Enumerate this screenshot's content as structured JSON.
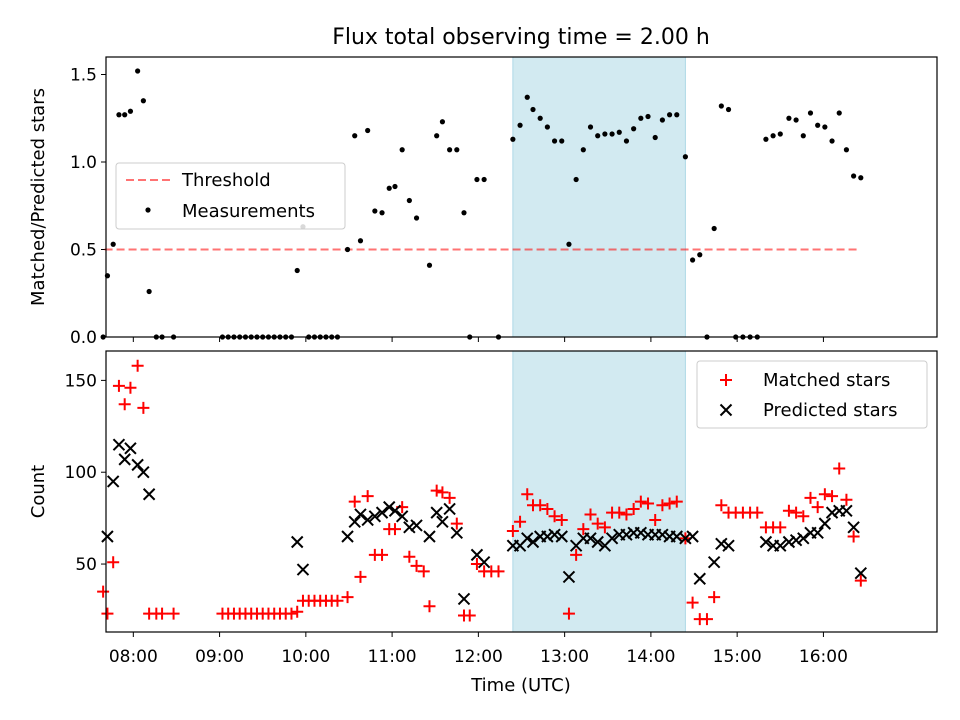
{
  "chart_data": {
    "type": "scatter",
    "title": "Flux total observing time = 2.00 h",
    "xlabel": "Time (UTC)",
    "x_ticks": [
      "08:00",
      "09:00",
      "10:00",
      "11:00",
      "12:00",
      "13:00",
      "14:00",
      "15:00",
      "16:00"
    ],
    "xlim": [
      "07:41",
      "17:19"
    ],
    "highlight_window": [
      "12:24",
      "14:24"
    ],
    "highlight_color": "#add8e6",
    "top": {
      "ylabel": "Matched/Predicted stars",
      "ylim": [
        0,
        1.6
      ],
      "yticks": [
        "0.0",
        "0.5",
        "1.0",
        "1.5"
      ],
      "legend_position": "center-left",
      "threshold": {
        "name": "Threshold",
        "y": 0.5,
        "x_start": "07:40",
        "x_end": "16:25",
        "color": "#ff0000",
        "style": "dashed"
      },
      "measurements": {
        "name": "Measurements",
        "color": "#000000",
        "points": [
          [
            "07:39",
            0
          ],
          [
            "07:42",
            0.35
          ],
          [
            "07:46",
            0.53
          ],
          [
            "07:50",
            1.27
          ],
          [
            "07:54",
            1.27
          ],
          [
            "07:58",
            1.29
          ],
          [
            "08:03",
            1.52
          ],
          [
            "08:07",
            1.35
          ],
          [
            "08:11",
            0.26
          ],
          [
            "08:16",
            0
          ],
          [
            "08:20",
            0
          ],
          [
            "08:28",
            0
          ],
          [
            "09:02",
            0
          ],
          [
            "09:06",
            0
          ],
          [
            "09:10",
            0
          ],
          [
            "09:14",
            0
          ],
          [
            "09:18",
            0
          ],
          [
            "09:22",
            0
          ],
          [
            "09:26",
            0
          ],
          [
            "09:30",
            0
          ],
          [
            "09:34",
            0
          ],
          [
            "09:38",
            0
          ],
          [
            "09:42",
            0
          ],
          [
            "09:46",
            0
          ],
          [
            "09:50",
            0
          ],
          [
            "09:54",
            0.38
          ],
          [
            "09:58",
            0.63
          ],
          [
            "10:02",
            0
          ],
          [
            "10:06",
            0
          ],
          [
            "10:10",
            0
          ],
          [
            "10:14",
            0
          ],
          [
            "10:18",
            0
          ],
          [
            "10:22",
            0
          ],
          [
            "10:29",
            0.5
          ],
          [
            "10:34",
            1.15
          ],
          [
            "10:38",
            0.55
          ],
          [
            "10:43",
            1.18
          ],
          [
            "10:48",
            0.72
          ],
          [
            "10:53",
            0.71
          ],
          [
            "10:58",
            0.85
          ],
          [
            "11:02",
            0.86
          ],
          [
            "11:07",
            1.07
          ],
          [
            "11:12",
            0.78
          ],
          [
            "11:17",
            0.68
          ],
          [
            "11:26",
            0.41
          ],
          [
            "11:31",
            1.15
          ],
          [
            "11:35",
            1.23
          ],
          [
            "11:40",
            1.07
          ],
          [
            "11:45",
            1.07
          ],
          [
            "11:50",
            0.71
          ],
          [
            "11:54",
            0
          ],
          [
            "11:59",
            0.9
          ],
          [
            "12:04",
            0.9
          ],
          [
            "12:14",
            0
          ],
          [
            "12:24",
            1.13
          ],
          [
            "12:29",
            1.21
          ],
          [
            "12:34",
            1.37
          ],
          [
            "12:38",
            1.3
          ],
          [
            "12:43",
            1.25
          ],
          [
            "12:48",
            1.2
          ],
          [
            "12:53",
            1.12
          ],
          [
            "12:58",
            1.12
          ],
          [
            "13:03",
            0.53
          ],
          [
            "13:08",
            0.9
          ],
          [
            "13:13",
            1.07
          ],
          [
            "13:18",
            1.2
          ],
          [
            "13:23",
            1.15
          ],
          [
            "13:28",
            1.16
          ],
          [
            "13:33",
            1.16
          ],
          [
            "13:38",
            1.17
          ],
          [
            "13:43",
            1.12
          ],
          [
            "13:48",
            1.19
          ],
          [
            "13:53",
            1.25
          ],
          [
            "13:58",
            1.26
          ],
          [
            "14:03",
            1.14
          ],
          [
            "14:08",
            1.24
          ],
          [
            "14:13",
            1.27
          ],
          [
            "14:18",
            1.27
          ],
          [
            "14:24",
            1.03
          ],
          [
            "14:29",
            0.44
          ],
          [
            "14:34",
            0.47
          ],
          [
            "14:39",
            0
          ],
          [
            "14:44",
            0.62
          ],
          [
            "14:49",
            1.32
          ],
          [
            "14:54",
            1.3
          ],
          [
            "14:59",
            0
          ],
          [
            "15:04",
            0
          ],
          [
            "15:09",
            0
          ],
          [
            "15:14",
            0
          ],
          [
            "15:20",
            1.13
          ],
          [
            "15:25",
            1.15
          ],
          [
            "15:30",
            1.16
          ],
          [
            "15:36",
            1.25
          ],
          [
            "15:41",
            1.24
          ],
          [
            "15:46",
            1.15
          ],
          [
            "15:51",
            1.28
          ],
          [
            "15:56",
            1.21
          ],
          [
            "16:01",
            1.2
          ],
          [
            "16:06",
            1.12
          ],
          [
            "16:11",
            1.28
          ],
          [
            "16:16",
            1.07
          ],
          [
            "16:21",
            0.92
          ],
          [
            "16:26",
            0.91
          ]
        ]
      }
    },
    "bottom": {
      "ylabel": "Count",
      "ylim": [
        13,
        166
      ],
      "yticks": [
        "50",
        "100",
        "150"
      ],
      "legend_position": "top-right",
      "matched": {
        "name": "Matched stars",
        "color": "#ff0000",
        "marker": "plus",
        "points": [
          [
            "07:39",
            35
          ],
          [
            "07:42",
            23
          ],
          [
            "07:46",
            51
          ],
          [
            "07:50",
            147
          ],
          [
            "07:54",
            137
          ],
          [
            "07:58",
            146
          ],
          [
            "08:03",
            158
          ],
          [
            "08:07",
            135
          ],
          [
            "08:11",
            23
          ],
          [
            "08:16",
            23
          ],
          [
            "08:20",
            23
          ],
          [
            "08:28",
            23
          ],
          [
            "09:02",
            23
          ],
          [
            "09:06",
            23
          ],
          [
            "09:10",
            23
          ],
          [
            "09:14",
            23
          ],
          [
            "09:18",
            23
          ],
          [
            "09:22",
            23
          ],
          [
            "09:26",
            23
          ],
          [
            "09:30",
            23
          ],
          [
            "09:34",
            23
          ],
          [
            "09:38",
            23
          ],
          [
            "09:42",
            23
          ],
          [
            "09:46",
            23
          ],
          [
            "09:50",
            23
          ],
          [
            "09:54",
            24
          ],
          [
            "09:58",
            30
          ],
          [
            "10:02",
            30
          ],
          [
            "10:06",
            30
          ],
          [
            "10:10",
            30
          ],
          [
            "10:14",
            30
          ],
          [
            "10:18",
            30
          ],
          [
            "10:22",
            30
          ],
          [
            "10:29",
            32
          ],
          [
            "10:34",
            84
          ],
          [
            "10:38",
            43
          ],
          [
            "10:43",
            87
          ],
          [
            "10:48",
            55
          ],
          [
            "10:53",
            55
          ],
          [
            "10:58",
            69
          ],
          [
            "11:02",
            69
          ],
          [
            "11:07",
            81
          ],
          [
            "11:12",
            54
          ],
          [
            "11:17",
            49
          ],
          [
            "11:22",
            46
          ],
          [
            "11:26",
            27
          ],
          [
            "11:31",
            90
          ],
          [
            "11:35",
            89
          ],
          [
            "11:40",
            86
          ],
          [
            "11:45",
            72
          ],
          [
            "11:50",
            22
          ],
          [
            "11:54",
            22
          ],
          [
            "11:59",
            50
          ],
          [
            "12:04",
            46
          ],
          [
            "12:09",
            46
          ],
          [
            "12:14",
            46
          ],
          [
            "12:24",
            68
          ],
          [
            "12:29",
            73
          ],
          [
            "12:34",
            88
          ],
          [
            "12:38",
            82
          ],
          [
            "12:43",
            82
          ],
          [
            "12:48",
            80
          ],
          [
            "12:53",
            76
          ],
          [
            "12:58",
            74
          ],
          [
            "13:03",
            23
          ],
          [
            "13:08",
            55
          ],
          [
            "13:13",
            69
          ],
          [
            "13:18",
            77
          ],
          [
            "13:23",
            72
          ],
          [
            "13:28",
            70
          ],
          [
            "13:33",
            78
          ],
          [
            "13:38",
            78
          ],
          [
            "13:43",
            77
          ],
          [
            "13:48",
            80
          ],
          [
            "13:53",
            84
          ],
          [
            "13:58",
            83
          ],
          [
            "14:03",
            74
          ],
          [
            "14:08",
            82
          ],
          [
            "14:13",
            83
          ],
          [
            "14:18",
            84
          ],
          [
            "14:24",
            64
          ],
          [
            "14:29",
            29
          ],
          [
            "14:34",
            20
          ],
          [
            "14:39",
            20
          ],
          [
            "14:44",
            32
          ],
          [
            "14:49",
            82
          ],
          [
            "14:54",
            78
          ],
          [
            "14:59",
            78
          ],
          [
            "15:04",
            78
          ],
          [
            "15:09",
            78
          ],
          [
            "15:14",
            78
          ],
          [
            "15:20",
            70
          ],
          [
            "15:25",
            70
          ],
          [
            "15:30",
            70
          ],
          [
            "15:36",
            79
          ],
          [
            "15:41",
            78
          ],
          [
            "15:46",
            76
          ],
          [
            "15:51",
            86
          ],
          [
            "15:56",
            81
          ],
          [
            "16:01",
            88
          ],
          [
            "16:06",
            87
          ],
          [
            "16:11",
            102
          ],
          [
            "16:16",
            85
          ],
          [
            "16:21",
            65
          ],
          [
            "16:26",
            41
          ]
        ]
      },
      "predicted": {
        "name": "Predicted stars",
        "color": "#000000",
        "marker": "x",
        "points": [
          [
            "07:42",
            65
          ],
          [
            "07:46",
            95
          ],
          [
            "07:50",
            115
          ],
          [
            "07:54",
            107
          ],
          [
            "07:58",
            113
          ],
          [
            "08:03",
            104
          ],
          [
            "08:07",
            100
          ],
          [
            "08:11",
            88
          ],
          [
            "09:54",
            62
          ],
          [
            "09:58",
            47
          ],
          [
            "10:29",
            65
          ],
          [
            "10:34",
            73
          ],
          [
            "10:38",
            77
          ],
          [
            "10:43",
            74
          ],
          [
            "10:48",
            76
          ],
          [
            "10:53",
            78
          ],
          [
            "10:58",
            81
          ],
          [
            "11:02",
            79
          ],
          [
            "11:07",
            76
          ],
          [
            "11:12",
            70
          ],
          [
            "11:17",
            71
          ],
          [
            "11:26",
            65
          ],
          [
            "11:31",
            78
          ],
          [
            "11:35",
            73
          ],
          [
            "11:40",
            80
          ],
          [
            "11:45",
            67
          ],
          [
            "11:50",
            31
          ],
          [
            "11:59",
            55
          ],
          [
            "12:04",
            51
          ],
          [
            "12:24",
            60
          ],
          [
            "12:29",
            60
          ],
          [
            "12:34",
            64
          ],
          [
            "12:38",
            62
          ],
          [
            "12:43",
            65
          ],
          [
            "12:48",
            65
          ],
          [
            "12:53",
            66
          ],
          [
            "12:58",
            65
          ],
          [
            "13:03",
            43
          ],
          [
            "13:08",
            60
          ],
          [
            "13:13",
            64
          ],
          [
            "13:18",
            64
          ],
          [
            "13:23",
            62
          ],
          [
            "13:28",
            60
          ],
          [
            "13:33",
            64
          ],
          [
            "13:38",
            66
          ],
          [
            "13:43",
            66
          ],
          [
            "13:48",
            67
          ],
          [
            "13:53",
            67
          ],
          [
            "13:58",
            66
          ],
          [
            "14:03",
            66
          ],
          [
            "14:08",
            66
          ],
          [
            "14:13",
            65
          ],
          [
            "14:18",
            65
          ],
          [
            "14:24",
            64
          ],
          [
            "14:29",
            65
          ],
          [
            "14:34",
            42
          ],
          [
            "14:44",
            51
          ],
          [
            "14:49",
            61
          ],
          [
            "14:54",
            60
          ],
          [
            "15:20",
            62
          ],
          [
            "15:25",
            60
          ],
          [
            "15:30",
            60
          ],
          [
            "15:36",
            62
          ],
          [
            "15:41",
            63
          ],
          [
            "15:46",
            64
          ],
          [
            "15:51",
            67
          ],
          [
            "15:56",
            67
          ],
          [
            "16:01",
            72
          ],
          [
            "16:06",
            78
          ],
          [
            "16:11",
            79
          ],
          [
            "16:16",
            79
          ],
          [
            "16:21",
            70
          ],
          [
            "16:26",
            45
          ]
        ]
      }
    }
  }
}
